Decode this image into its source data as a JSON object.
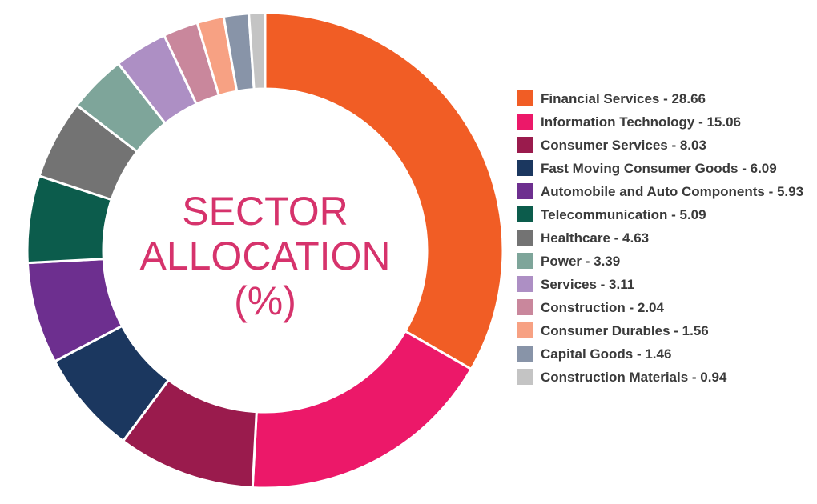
{
  "center_title": [
    "SECTOR",
    "ALLOCATION",
    "(%)"
  ],
  "colors": {
    "title": "#d6336c",
    "legend_text": "#3a3a3a"
  },
  "chart_data": {
    "type": "pie",
    "donut": true,
    "legend_position": "right",
    "slices": [
      {
        "name": "Financial Services",
        "value": 28.66,
        "label": "Financial Services - 28.66",
        "color": "#f15d25"
      },
      {
        "name": "Information Technology",
        "value": 15.06,
        "label": "Information Technology - 15.06",
        "color": "#ec1869"
      },
      {
        "name": "Consumer Services",
        "value": 8.03,
        "label": "Consumer Services - 8.03",
        "color": "#9a1b4d"
      },
      {
        "name": "Fast Moving Consumer Goods",
        "value": 6.09,
        "label": "Fast Moving Consumer Goods - 6.09",
        "color": "#1b375f"
      },
      {
        "name": "Automobile and Auto Components",
        "value": 5.93,
        "label": "Automobile and Auto Components - 5.93",
        "color": "#6d2f8f"
      },
      {
        "name": "Telecommunication",
        "value": 5.09,
        "label": "Telecommunication - 5.09",
        "color": "#0c5c4c"
      },
      {
        "name": "Healthcare",
        "value": 4.63,
        "label": "Healthcare - 4.63",
        "color": "#737373"
      },
      {
        "name": "Power",
        "value": 3.39,
        "label": "Power - 3.39",
        "color": "#7ea59a"
      },
      {
        "name": "Services",
        "value": 3.11,
        "label": "Services - 3.11",
        "color": "#ad8fc4"
      },
      {
        "name": "Construction",
        "value": 2.04,
        "label": "Construction - 2.04",
        "color": "#c9879c"
      },
      {
        "name": "Consumer Durables",
        "value": 1.56,
        "label": "Consumer Durables - 1.56",
        "color": "#f7a183"
      },
      {
        "name": "Capital Goods",
        "value": 1.46,
        "label": "Capital Goods - 1.46",
        "color": "#8894a8"
      },
      {
        "name": "Construction Materials",
        "value": 0.94,
        "label": "Construction Materials - 0.94",
        "color": "#c4c4c4"
      }
    ]
  }
}
